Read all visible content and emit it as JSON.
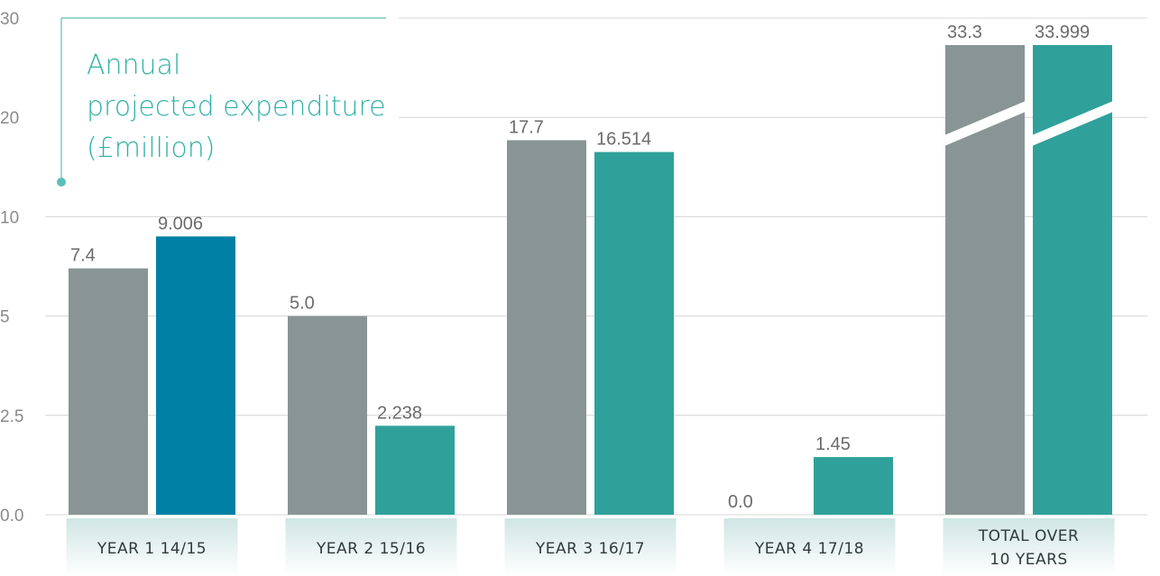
{
  "chart_data": {
    "type": "bar",
    "title": "Annual\nprojected expenditure\n(£million)",
    "categories": [
      "YEAR 1 14/15",
      "YEAR 2 15/16",
      "YEAR 3 16/17",
      "YEAR 4 17/18",
      "TOTAL OVER\n10  YEARS"
    ],
    "series": [
      {
        "colors": [
          "#899594",
          "#899594",
          "#899594",
          "#899594",
          "#899594"
        ],
        "values": [
          7.4,
          5.0,
          17.7,
          0.0,
          33.3
        ],
        "value_labels": [
          "7.4",
          "5.0",
          "17.7",
          "0.0",
          "33.3"
        ]
      },
      {
        "colors": [
          "#0080a5",
          "#2fa19a",
          "#2fa19a",
          "#2fa19a",
          "#2fa19a"
        ],
        "values": [
          9.006,
          2.238,
          16.514,
          1.45,
          33.999
        ],
        "value_labels": [
          "9.006",
          "2.238",
          "16.514",
          "1.45",
          "33.999"
        ]
      }
    ],
    "ylim": [
      0,
      30
    ],
    "yticks": [
      {
        "value": 0,
        "label": "0.0"
      },
      2.5,
      5,
      10,
      20,
      30
    ],
    "grid": true
  }
}
